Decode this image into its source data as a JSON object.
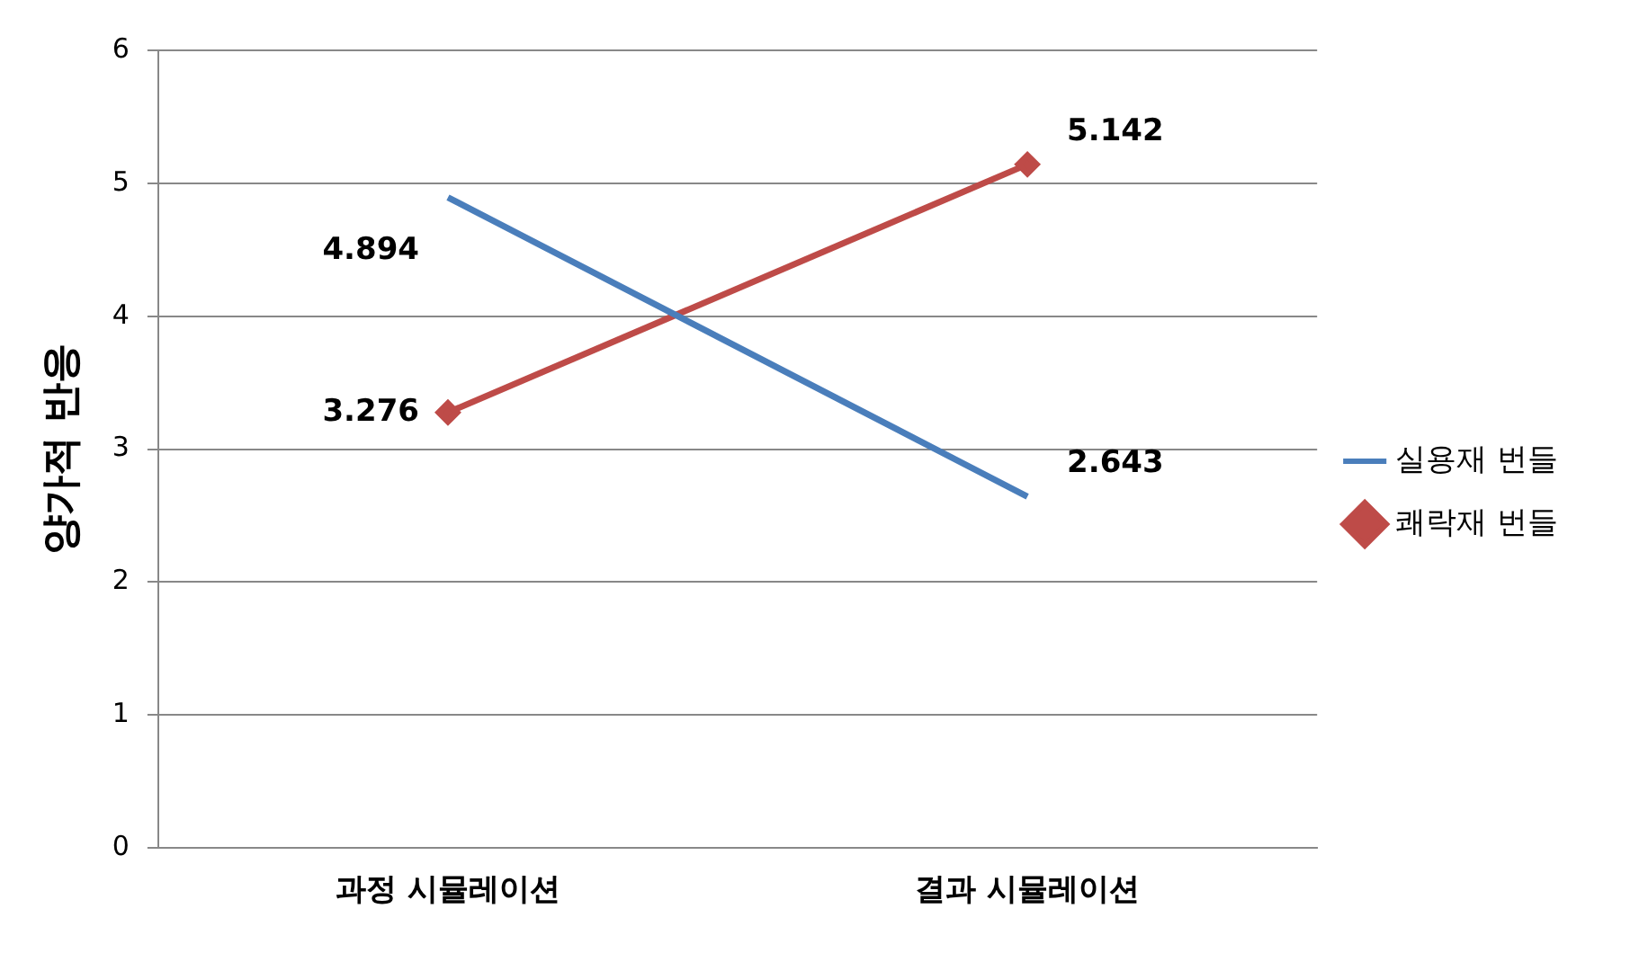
{
  "chart_data": {
    "type": "line",
    "ylabel": "양가적 반응",
    "categories": [
      "과정 시뮬레이션",
      "결과 시뮬레이션"
    ],
    "series": [
      {
        "name": "실용재 번들",
        "color": "#4a7ebb",
        "values": [
          4.894,
          2.643
        ],
        "marker": "none"
      },
      {
        "name": "쾌락재 번들",
        "color": "#be4b48",
        "values": [
          3.276,
          5.142
        ],
        "marker": "diamond"
      }
    ],
    "ylim": [
      0,
      6
    ],
    "yticks": [
      0,
      1,
      2,
      3,
      4,
      5,
      6
    ],
    "grid": "y",
    "legend": "right",
    "data_labels": true,
    "line_style": "solid"
  }
}
